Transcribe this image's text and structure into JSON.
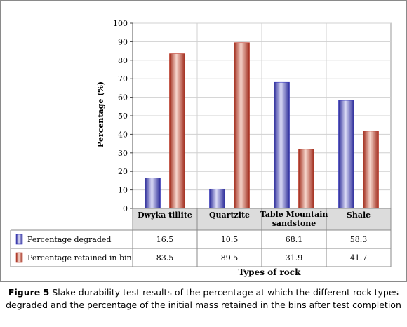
{
  "chart_data": {
    "type": "bar",
    "categories": [
      "Dwyka tillite",
      "Quartzite",
      "Table Mountain sandstone",
      "Shale"
    ],
    "series": [
      {
        "name": "Percentage degraded",
        "values": [
          16.5,
          10.5,
          68.1,
          58.3
        ],
        "color": "#3333bb"
      },
      {
        "name": "Percentage retained in bin",
        "values": [
          83.5,
          89.5,
          31.9,
          41.7
        ],
        "color": "#bb3322"
      }
    ],
    "ylabel": "Percentage (%)",
    "xlabel": "Types of rock",
    "ylim": [
      0,
      100
    ],
    "yticks": [
      0,
      10,
      20,
      30,
      40,
      50,
      60,
      70,
      80,
      90,
      100
    ],
    "grid": true,
    "data_table": {
      "rows": [
        {
          "label": "Percentage degraded",
          "cells": [
            "16.5",
            "10.5",
            "68.1",
            "58.3"
          ]
        },
        {
          "label": "Percentage retained in bin",
          "cells": [
            "83.5",
            "89.5",
            "31.9",
            "41.7"
          ]
        }
      ]
    }
  },
  "caption": {
    "label": "Figure 5",
    "text": "Slake durability test results of the percentage at which the different rock types degraded and the percentage of the initial mass retained in the bins after test completion"
  }
}
